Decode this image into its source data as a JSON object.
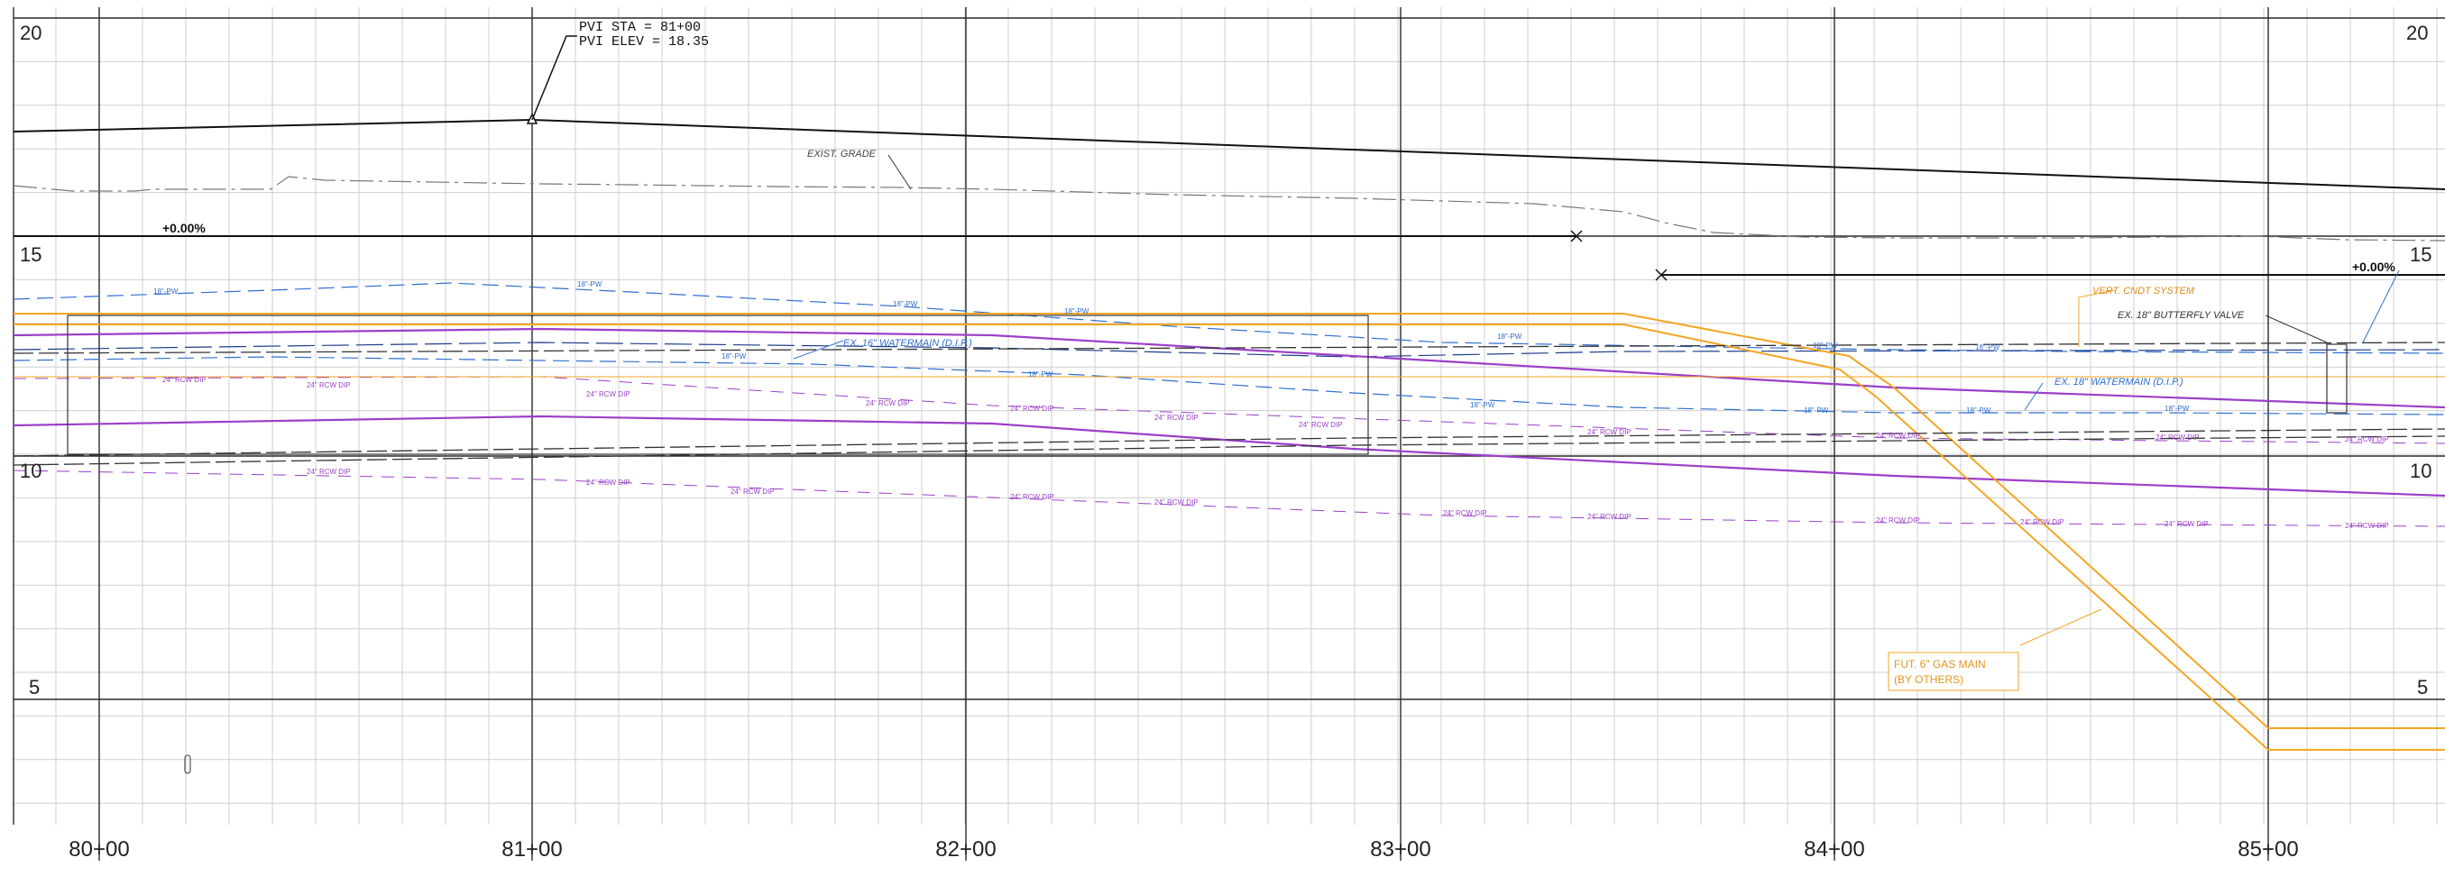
{
  "profile": {
    "elevation_labels": [
      "20",
      "15",
      "10",
      "5"
    ],
    "station_labels": [
      "80+00",
      "81+00",
      "82+00",
      "83+00",
      "84+00",
      "85+00"
    ],
    "pvi": {
      "station_text": "PVI STA = 81+00",
      "elevation_text": "PVI ELEV = 18.35"
    },
    "grade_left": "+0.00%",
    "grade_right": "+0.00%",
    "exist_grade_label": "EXIST. GRADE",
    "utilities": {
      "pipe_18_tag": "18\"-PW",
      "pipe_24_tag": "24\" RCW DIP",
      "ex_watermain_left": "EX. 16\" WATERMAIN (D.I.P.)",
      "vert_cndt": "VERT. CNDT SYSTEM",
      "butterfly_valve": "EX. 18\" BUTTERFLY VALVE",
      "ex_watermain_right": "EX. 18\" WATERMAIN (D.I.P.)",
      "gas_main_line1": "FUT. 6\" GAS MAIN",
      "gas_main_line2": "(BY OTHERS)"
    },
    "colors": {
      "grid_major": "#2a2a2a",
      "grid_minor": "#c9c9c9",
      "water_blue": "#2f6fd0",
      "rcw_purple": "#9b3fc9",
      "gas_orange": "#f2a623",
      "red_tick": "#e0452d"
    }
  }
}
